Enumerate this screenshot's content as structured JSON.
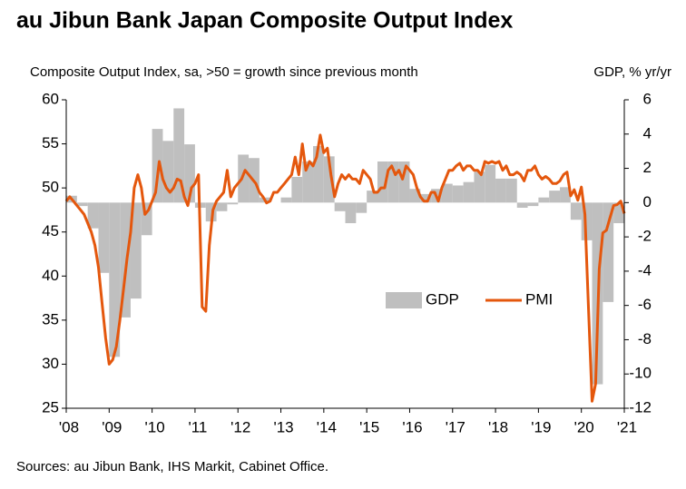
{
  "chart_data": {
    "type": "bar",
    "title": "au Jibun Bank Japan Composite Output Index",
    "subtitle": "Composite Output Index, sa, >50 = growth since previous month",
    "y2_label": "GDP, % yr/yr",
    "source": "Sources: au Jibun Bank, IHS Markit, Cabinet Office.",
    "xlim": [
      2008,
      2021
    ],
    "xticks": [
      {
        "value": 2008,
        "label": "'08"
      },
      {
        "value": 2009,
        "label": "'09"
      },
      {
        "value": 2010,
        "label": "'10"
      },
      {
        "value": 2011,
        "label": "'11"
      },
      {
        "value": 2012,
        "label": "'12"
      },
      {
        "value": 2013,
        "label": "'13"
      },
      {
        "value": 2014,
        "label": "'14"
      },
      {
        "value": 2015,
        "label": "'15"
      },
      {
        "value": 2016,
        "label": "'16"
      },
      {
        "value": 2017,
        "label": "'17"
      },
      {
        "value": 2018,
        "label": "'18"
      },
      {
        "value": 2019,
        "label": "'19"
      },
      {
        "value": 2020,
        "label": "'20"
      },
      {
        "value": 2021,
        "label": "'21"
      }
    ],
    "ylim": [
      25,
      60
    ],
    "yticks": [
      25,
      30,
      35,
      40,
      45,
      50,
      55,
      60
    ],
    "y2lim": [
      -12,
      6
    ],
    "y2ticks": [
      -12,
      -10,
      -8,
      -6,
      -4,
      -2,
      0,
      2,
      4,
      6
    ],
    "legend": "center",
    "series": [
      {
        "name": "GDP",
        "type": "bar",
        "axis": "y2",
        "color": "#bfbfbf",
        "x": [
          2008,
          2008.25,
          2008.5,
          2008.75,
          2009,
          2009.25,
          2009.5,
          2009.75,
          2010,
          2010.25,
          2010.5,
          2010.75,
          2011,
          2011.25,
          2011.5,
          2011.75,
          2012,
          2012.25,
          2012.5,
          2012.75,
          2013,
          2013.25,
          2013.5,
          2013.75,
          2014,
          2014.25,
          2014.5,
          2014.75,
          2015,
          2015.25,
          2015.5,
          2015.75,
          2016,
          2016.25,
          2016.5,
          2016.75,
          2017,
          2017.25,
          2017.5,
          2017.75,
          2018,
          2018.25,
          2018.5,
          2018.75,
          2019,
          2019.25,
          2019.5,
          2019.75,
          2020,
          2020.25,
          2020.5,
          2020.75
        ],
        "values": [
          0.4,
          -0.2,
          -1.5,
          -4.1,
          -9,
          -6.7,
          -5.6,
          -1.9,
          4.3,
          3.6,
          5.5,
          3.4,
          -0.3,
          -1.1,
          -0.5,
          -0.1,
          2.8,
          2.6,
          0.3,
          0,
          0.3,
          1.5,
          2.4,
          3.3,
          2.7,
          -0.5,
          -1.2,
          -0.6,
          0.7,
          2.4,
          2.4,
          2.4,
          0.8,
          0.5,
          0.8,
          1.1,
          1,
          1.2,
          1.8,
          2.2,
          1.4,
          1.4,
          -0.3,
          -0.2,
          0.3,
          0.7,
          0.9,
          -1,
          -2.2,
          -10.6,
          -5.8,
          -1.2
        ]
      },
      {
        "name": "PMI",
        "type": "line",
        "axis": "y",
        "color": "#e4570d",
        "x": [
          2008,
          2008.083,
          2008.167,
          2008.25,
          2008.333,
          2008.417,
          2008.5,
          2008.583,
          2008.667,
          2008.75,
          2008.833,
          2008.917,
          2009,
          2009.083,
          2009.167,
          2009.25,
          2009.333,
          2009.417,
          2009.5,
          2009.583,
          2009.667,
          2009.75,
          2009.833,
          2009.917,
          2010,
          2010.083,
          2010.167,
          2010.25,
          2010.333,
          2010.417,
          2010.5,
          2010.583,
          2010.667,
          2010.75,
          2010.833,
          2010.917,
          2011,
          2011.083,
          2011.167,
          2011.25,
          2011.333,
          2011.417,
          2011.5,
          2011.583,
          2011.667,
          2011.75,
          2011.833,
          2011.917,
          2012,
          2012.083,
          2012.167,
          2012.25,
          2012.333,
          2012.417,
          2012.5,
          2012.583,
          2012.667,
          2012.75,
          2012.833,
          2012.917,
          2013,
          2013.083,
          2013.167,
          2013.25,
          2013.333,
          2013.417,
          2013.5,
          2013.583,
          2013.667,
          2013.75,
          2013.833,
          2013.917,
          2014,
          2014.083,
          2014.167,
          2014.25,
          2014.333,
          2014.417,
          2014.5,
          2014.583,
          2014.667,
          2014.75,
          2014.833,
          2014.917,
          2015,
          2015.083,
          2015.167,
          2015.25,
          2015.333,
          2015.417,
          2015.5,
          2015.583,
          2015.667,
          2015.75,
          2015.833,
          2015.917,
          2016,
          2016.083,
          2016.167,
          2016.25,
          2016.333,
          2016.417,
          2016.5,
          2016.583,
          2016.667,
          2016.75,
          2016.833,
          2016.917,
          2017,
          2017.083,
          2017.167,
          2017.25,
          2017.333,
          2017.417,
          2017.5,
          2017.583,
          2017.667,
          2017.75,
          2017.833,
          2017.917,
          2018,
          2018.083,
          2018.167,
          2018.25,
          2018.333,
          2018.417,
          2018.5,
          2018.583,
          2018.667,
          2018.75,
          2018.833,
          2018.917,
          2019,
          2019.083,
          2019.167,
          2019.25,
          2019.333,
          2019.417,
          2019.5,
          2019.583,
          2019.667,
          2019.75,
          2019.833,
          2019.917,
          2020,
          2020.083,
          2020.167,
          2020.25,
          2020.333,
          2020.417,
          2020.5,
          2020.583,
          2020.667,
          2020.75,
          2020.833,
          2020.917,
          2021
        ],
        "values": [
          48.5,
          49,
          48.5,
          48,
          47.5,
          47,
          46,
          45,
          43.5,
          41,
          37,
          33,
          30,
          30.5,
          32,
          35,
          38.5,
          42,
          45,
          50,
          51.5,
          50,
          47,
          47.5,
          48.5,
          49.5,
          53,
          51,
          50,
          49.5,
          50,
          51,
          50.8,
          49,
          48,
          50,
          50.5,
          51.5,
          36.5,
          36,
          43.5,
          47.5,
          48.5,
          49,
          49.5,
          52,
          49,
          50,
          50.5,
          51,
          52,
          51.5,
          51,
          50.5,
          49.5,
          49,
          48.3,
          48.5,
          49.5,
          49.5,
          50,
          50.5,
          51,
          51.5,
          53.5,
          51.5,
          55,
          52,
          53,
          52.5,
          53.5,
          56,
          54,
          54.5,
          51.5,
          49,
          50.5,
          51.5,
          51,
          51.5,
          51,
          51,
          50.5,
          52,
          51.5,
          51,
          49.5,
          49.5,
          50,
          50,
          52,
          52.5,
          51.5,
          52,
          51,
          52.5,
          52,
          51.5,
          50,
          49,
          48.5,
          48.5,
          49.5,
          49.5,
          48.5,
          50,
          51,
          52,
          52,
          52.5,
          52.8,
          52,
          52.5,
          52.5,
          52,
          52,
          51.5,
          53,
          52.8,
          53,
          52.8,
          53,
          52,
          52.5,
          51.5,
          51.5,
          51.8,
          51.5,
          50.8,
          52,
          52,
          52.5,
          51.5,
          51,
          51.3,
          51,
          50.5,
          50.5,
          50.8,
          51.5,
          51.8,
          49.1,
          49.8,
          48.6,
          50.1,
          47,
          36.2,
          25.8,
          27.8,
          40.8,
          44.9,
          45.2,
          46.6,
          48,
          48.1,
          48.5,
          47.1
        ]
      }
    ]
  }
}
